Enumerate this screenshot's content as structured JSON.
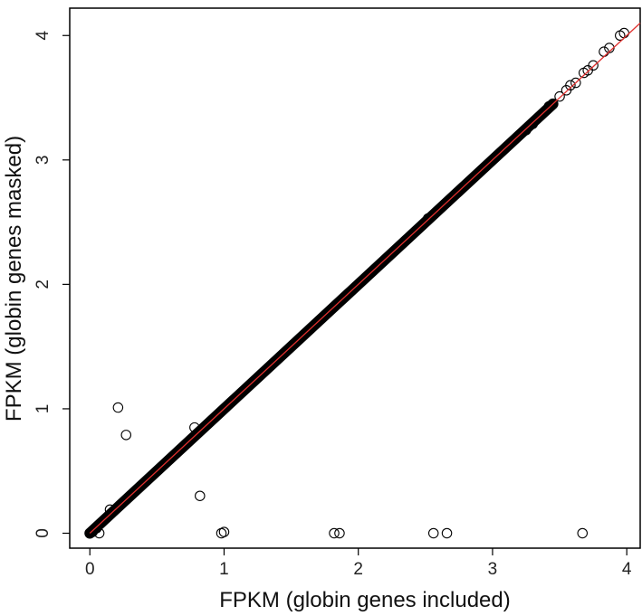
{
  "chart_data": {
    "type": "scatter",
    "title": "",
    "xlabel": "FPKM (globin genes included)",
    "ylabel": "FPKM (globin genes masked)",
    "xlim": [
      -0.15,
      4.1
    ],
    "ylim": [
      -0.12,
      4.22
    ],
    "xticks": [
      0,
      1,
      2,
      3,
      4
    ],
    "yticks": [
      0,
      1,
      2,
      3,
      4
    ],
    "grid": false,
    "legend": "none",
    "colors": {
      "points": "#000000",
      "fit_line": "#e0302e",
      "frame": "#000000"
    },
    "reference_line": {
      "slope": 1,
      "intercept": 0,
      "from": 0,
      "to": 4.1
    },
    "dense_band": {
      "from": 0,
      "to": 3.45,
      "description_free": true
    },
    "series": [
      {
        "points": [
          [
            0.0,
            0.0
          ],
          [
            0.02,
            0.01
          ],
          [
            0.05,
            0.04
          ],
          [
            0.08,
            0.08
          ],
          [
            0.15,
            0.19
          ],
          [
            0.78,
            0.85
          ],
          [
            2.52,
            2.53
          ],
          [
            3.2,
            3.2
          ],
          [
            3.25,
            3.24
          ],
          [
            3.3,
            3.29
          ],
          [
            3.35,
            3.35
          ],
          [
            3.42,
            3.43
          ],
          [
            3.5,
            3.51
          ],
          [
            3.55,
            3.56
          ],
          [
            3.58,
            3.6
          ],
          [
            3.62,
            3.62
          ],
          [
            3.68,
            3.7
          ],
          [
            3.71,
            3.72
          ],
          [
            3.75,
            3.76
          ],
          [
            3.83,
            3.87
          ],
          [
            3.87,
            3.9
          ],
          [
            3.95,
            4.0
          ],
          [
            3.98,
            4.02
          ],
          [
            0.21,
            1.01
          ],
          [
            0.27,
            0.79
          ],
          [
            0.82,
            0.3
          ],
          [
            0.07,
            0.0
          ],
          [
            0.98,
            0.0
          ],
          [
            1.0,
            0.01
          ],
          [
            1.82,
            0.0
          ],
          [
            1.86,
            0.0
          ],
          [
            2.56,
            0.0
          ],
          [
            2.66,
            0.0
          ],
          [
            3.67,
            0.0
          ]
        ]
      }
    ]
  }
}
